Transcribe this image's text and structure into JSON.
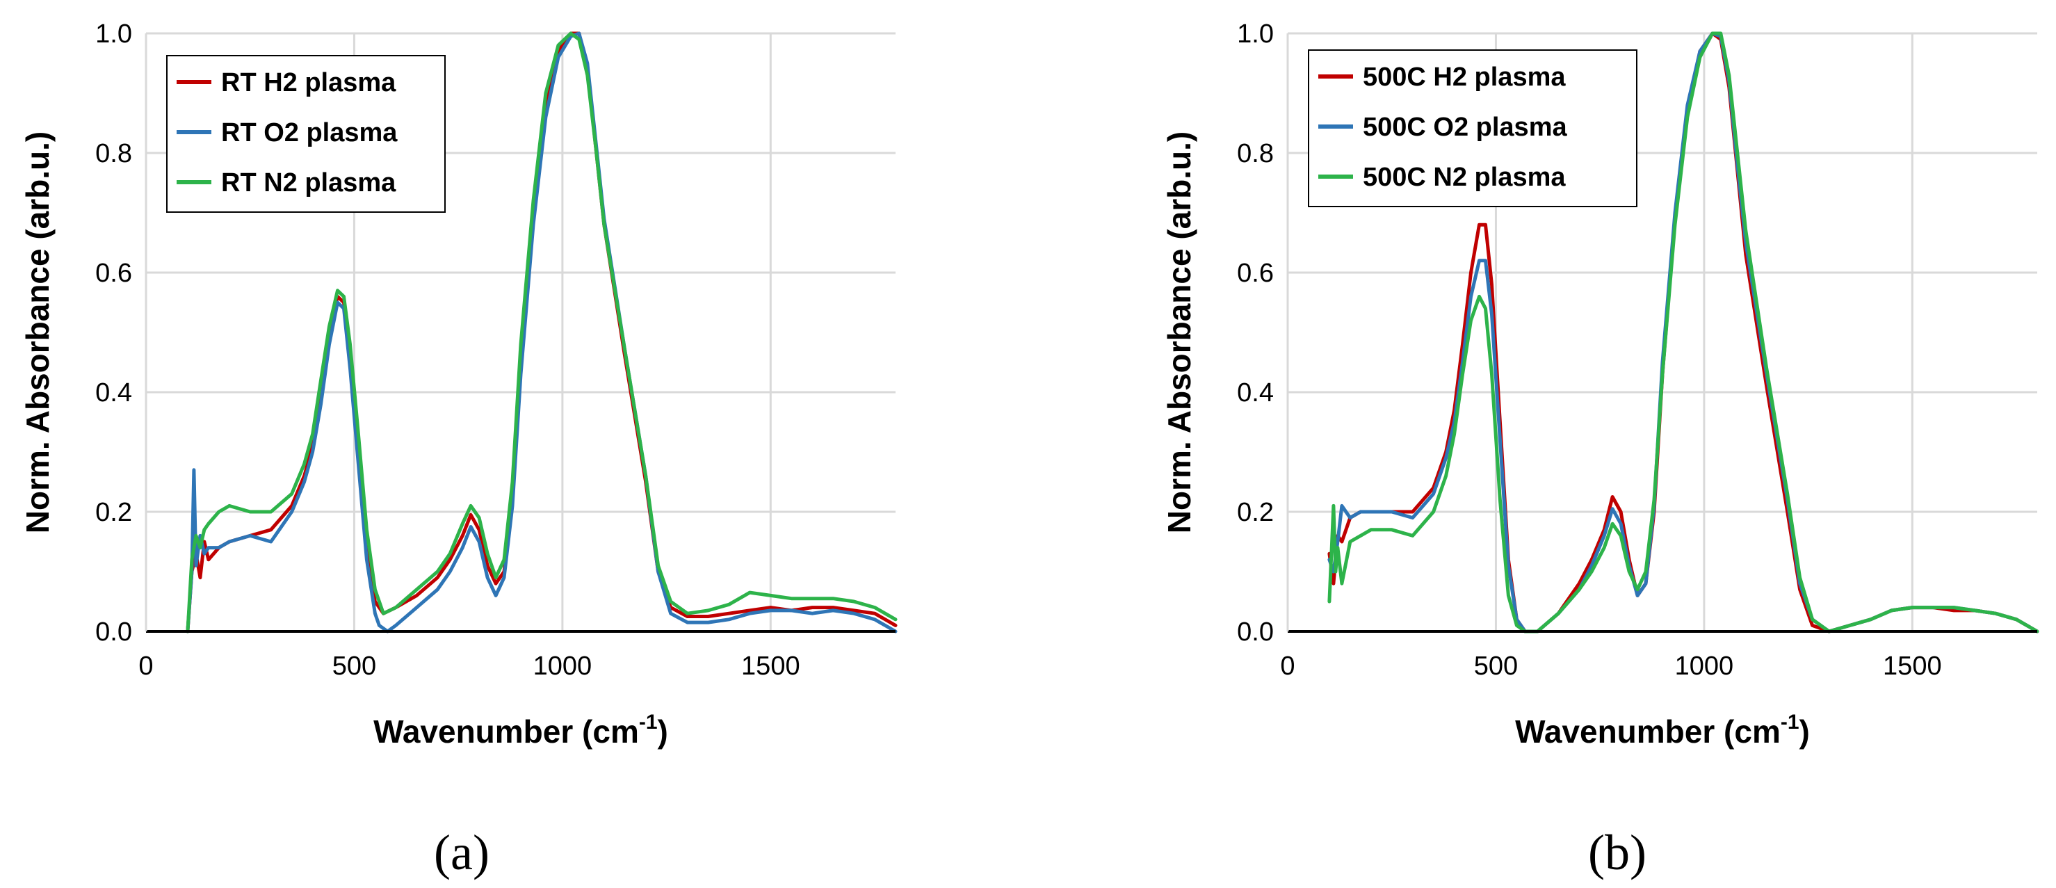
{
  "chart_data": [
    {
      "type": "line",
      "panel_label": "(a)",
      "xlabel": "Wavenumber (cm",
      "xlabel_sup": "-1",
      "xlabel_tail": ")",
      "ylabel": "Norm. Absorbance (arb.u.)",
      "xlim": [
        0,
        1800
      ],
      "ylim": [
        0,
        1.0
      ],
      "xticks": [
        0,
        500,
        1000,
        1500
      ],
      "yticks": [
        0.0,
        0.2,
        0.4,
        0.6,
        0.8,
        1.0
      ],
      "xtick_labels": [
        "0",
        "500",
        "1000",
        "1500"
      ],
      "ytick_labels": [
        "0.0",
        "0.2",
        "0.4",
        "0.6",
        "0.8",
        "1.0"
      ],
      "grid": true,
      "legend_position": "top-left",
      "series": [
        {
          "name": "RT H2 plasma",
          "color": "#c00000",
          "x": [
            100,
            110,
            120,
            130,
            140,
            150,
            175,
            200,
            250,
            300,
            350,
            380,
            400,
            420,
            440,
            460,
            475,
            490,
            510,
            530,
            550,
            570,
            600,
            650,
            700,
            730,
            760,
            780,
            800,
            820,
            840,
            860,
            880,
            900,
            930,
            960,
            990,
            1020,
            1040,
            1060,
            1080,
            1100,
            1150,
            1200,
            1230,
            1260,
            1300,
            1350,
            1400,
            1450,
            1500,
            1550,
            1600,
            1650,
            1700,
            1750,
            1800
          ],
          "y": [
            0.0,
            0.1,
            0.13,
            0.09,
            0.15,
            0.12,
            0.14,
            0.15,
            0.16,
            0.17,
            0.21,
            0.26,
            0.31,
            0.4,
            0.5,
            0.56,
            0.55,
            0.46,
            0.3,
            0.14,
            0.05,
            0.03,
            0.04,
            0.06,
            0.09,
            0.12,
            0.16,
            0.195,
            0.17,
            0.11,
            0.08,
            0.1,
            0.22,
            0.45,
            0.7,
            0.88,
            0.97,
            1.0,
            1.0,
            0.94,
            0.81,
            0.68,
            0.46,
            0.25,
            0.1,
            0.04,
            0.025,
            0.025,
            0.03,
            0.035,
            0.04,
            0.035,
            0.04,
            0.04,
            0.035,
            0.03,
            0.01
          ]
        },
        {
          "name": "RT O2 plasma",
          "color": "#2e75b6",
          "x": [
            100,
            110,
            115,
            120,
            130,
            140,
            150,
            175,
            200,
            250,
            300,
            350,
            380,
            400,
            420,
            440,
            460,
            475,
            490,
            510,
            530,
            550,
            560,
            580,
            600,
            650,
            700,
            730,
            760,
            780,
            800,
            820,
            840,
            860,
            880,
            900,
            930,
            960,
            990,
            1020,
            1040,
            1060,
            1080,
            1100,
            1150,
            1200,
            1230,
            1260,
            1300,
            1350,
            1400,
            1450,
            1500,
            1550,
            1600,
            1650,
            1700,
            1750,
            1800
          ],
          "y": [
            0.0,
            0.1,
            0.27,
            0.11,
            0.16,
            0.13,
            0.14,
            0.14,
            0.15,
            0.16,
            0.15,
            0.2,
            0.25,
            0.3,
            0.38,
            0.48,
            0.55,
            0.54,
            0.44,
            0.28,
            0.12,
            0.03,
            0.01,
            0.0,
            0.01,
            0.04,
            0.07,
            0.1,
            0.14,
            0.175,
            0.15,
            0.09,
            0.06,
            0.09,
            0.21,
            0.43,
            0.68,
            0.86,
            0.96,
            0.995,
            1.0,
            0.95,
            0.82,
            0.69,
            0.47,
            0.26,
            0.1,
            0.03,
            0.015,
            0.015,
            0.02,
            0.03,
            0.035,
            0.035,
            0.03,
            0.035,
            0.03,
            0.02,
            0.0
          ]
        },
        {
          "name": "RT N2 plasma",
          "color": "#2db34a",
          "x": [
            100,
            110,
            120,
            130,
            140,
            150,
            175,
            200,
            250,
            300,
            350,
            380,
            400,
            420,
            440,
            460,
            475,
            490,
            510,
            530,
            550,
            570,
            600,
            650,
            700,
            730,
            760,
            780,
            800,
            820,
            840,
            860,
            880,
            900,
            930,
            960,
            990,
            1020,
            1040,
            1060,
            1080,
            1100,
            1150,
            1200,
            1230,
            1260,
            1300,
            1350,
            1400,
            1450,
            1500,
            1550,
            1600,
            1650,
            1700,
            1750,
            1800
          ],
          "y": [
            0.0,
            0.12,
            0.16,
            0.14,
            0.17,
            0.18,
            0.2,
            0.21,
            0.2,
            0.2,
            0.23,
            0.28,
            0.33,
            0.42,
            0.51,
            0.57,
            0.56,
            0.48,
            0.33,
            0.17,
            0.07,
            0.03,
            0.04,
            0.07,
            0.1,
            0.13,
            0.18,
            0.21,
            0.19,
            0.13,
            0.09,
            0.12,
            0.25,
            0.48,
            0.72,
            0.9,
            0.98,
            1.0,
            0.99,
            0.93,
            0.81,
            0.68,
            0.47,
            0.26,
            0.11,
            0.05,
            0.03,
            0.035,
            0.045,
            0.065,
            0.06,
            0.055,
            0.055,
            0.055,
            0.05,
            0.04,
            0.02
          ]
        }
      ]
    },
    {
      "type": "line",
      "panel_label": "(b)",
      "xlabel": "Wavenumber (cm",
      "xlabel_sup": "-1",
      "xlabel_tail": ")",
      "ylabel": "Norm. Absorbance (arb.u.)",
      "xlim": [
        0,
        1800
      ],
      "ylim": [
        0,
        1.0
      ],
      "xticks": [
        0,
        500,
        1000,
        1500
      ],
      "yticks": [
        0.0,
        0.2,
        0.4,
        0.6,
        0.8,
        1.0
      ],
      "xtick_labels": [
        "0",
        "500",
        "1000",
        "1500"
      ],
      "ytick_labels": [
        "0.0",
        "0.2",
        "0.4",
        "0.6",
        "0.8",
        "1.0"
      ],
      "grid": true,
      "legend_position": "top-left",
      "series": [
        {
          "name": "500C H2 plasma",
          "color": "#c00000",
          "x": [
            100,
            110,
            120,
            130,
            150,
            175,
            200,
            250,
            300,
            350,
            380,
            400,
            420,
            440,
            460,
            475,
            490,
            510,
            530,
            550,
            570,
            600,
            650,
            700,
            730,
            760,
            780,
            800,
            820,
            840,
            860,
            880,
            900,
            930,
            960,
            990,
            1020,
            1040,
            1060,
            1080,
            1100,
            1150,
            1200,
            1230,
            1260,
            1300,
            1350,
            1400,
            1450,
            1500,
            1550,
            1600,
            1650,
            1700,
            1750,
            1800
          ],
          "y": [
            0.13,
            0.08,
            0.16,
            0.15,
            0.19,
            0.2,
            0.2,
            0.2,
            0.2,
            0.24,
            0.3,
            0.37,
            0.48,
            0.6,
            0.68,
            0.68,
            0.58,
            0.35,
            0.12,
            0.02,
            0.0,
            0.0,
            0.03,
            0.08,
            0.12,
            0.17,
            0.225,
            0.2,
            0.12,
            0.06,
            0.08,
            0.2,
            0.43,
            0.69,
            0.87,
            0.97,
            1.0,
            0.99,
            0.91,
            0.77,
            0.63,
            0.41,
            0.2,
            0.07,
            0.01,
            0.0,
            0.01,
            0.02,
            0.035,
            0.04,
            0.04,
            0.035,
            0.035,
            0.03,
            0.02,
            0.0
          ]
        },
        {
          "name": "500C O2 plasma",
          "color": "#2e75b6",
          "x": [
            100,
            110,
            120,
            130,
            150,
            175,
            200,
            250,
            300,
            350,
            380,
            400,
            420,
            440,
            460,
            475,
            490,
            510,
            530,
            550,
            570,
            600,
            650,
            700,
            730,
            760,
            780,
            800,
            820,
            840,
            860,
            880,
            900,
            930,
            960,
            990,
            1020,
            1040,
            1060,
            1080,
            1100,
            1150,
            1200,
            1230,
            1260,
            1300,
            1350,
            1400,
            1450,
            1500,
            1550,
            1600,
            1650,
            1700,
            1750,
            1800
          ],
          "y": [
            0.12,
            0.1,
            0.15,
            0.21,
            0.19,
            0.2,
            0.2,
            0.2,
            0.19,
            0.23,
            0.29,
            0.35,
            0.45,
            0.56,
            0.62,
            0.62,
            0.53,
            0.32,
            0.11,
            0.02,
            0.0,
            0.0,
            0.03,
            0.07,
            0.11,
            0.16,
            0.205,
            0.18,
            0.11,
            0.06,
            0.08,
            0.21,
            0.45,
            0.7,
            0.88,
            0.97,
            1.0,
            0.995,
            0.92,
            0.78,
            0.65,
            0.43,
            0.22,
            0.08,
            0.02,
            0.0,
            0.01,
            0.02,
            0.035,
            0.04,
            0.04,
            0.04,
            0.035,
            0.03,
            0.02,
            0.0
          ]
        },
        {
          "name": "500C N2 plasma",
          "color": "#2db34a",
          "x": [
            100,
            110,
            115,
            120,
            130,
            150,
            175,
            200,
            250,
            300,
            350,
            380,
            400,
            420,
            440,
            460,
            475,
            490,
            510,
            530,
            550,
            570,
            600,
            650,
            700,
            730,
            760,
            780,
            800,
            820,
            840,
            860,
            880,
            900,
            930,
            960,
            990,
            1020,
            1040,
            1060,
            1080,
            1100,
            1150,
            1200,
            1230,
            1260,
            1300,
            1350,
            1400,
            1450,
            1500,
            1550,
            1600,
            1650,
            1700,
            1750,
            1800
          ],
          "y": [
            0.05,
            0.21,
            0.1,
            0.14,
            0.08,
            0.15,
            0.16,
            0.17,
            0.17,
            0.16,
            0.2,
            0.26,
            0.33,
            0.43,
            0.52,
            0.56,
            0.54,
            0.43,
            0.22,
            0.06,
            0.01,
            0.0,
            0.0,
            0.03,
            0.07,
            0.1,
            0.14,
            0.18,
            0.16,
            0.1,
            0.07,
            0.1,
            0.22,
            0.43,
            0.68,
            0.86,
            0.96,
            1.0,
            1.0,
            0.93,
            0.8,
            0.67,
            0.44,
            0.23,
            0.09,
            0.02,
            0.0,
            0.01,
            0.02,
            0.035,
            0.04,
            0.04,
            0.04,
            0.035,
            0.03,
            0.02,
            0.0
          ]
        }
      ]
    }
  ]
}
